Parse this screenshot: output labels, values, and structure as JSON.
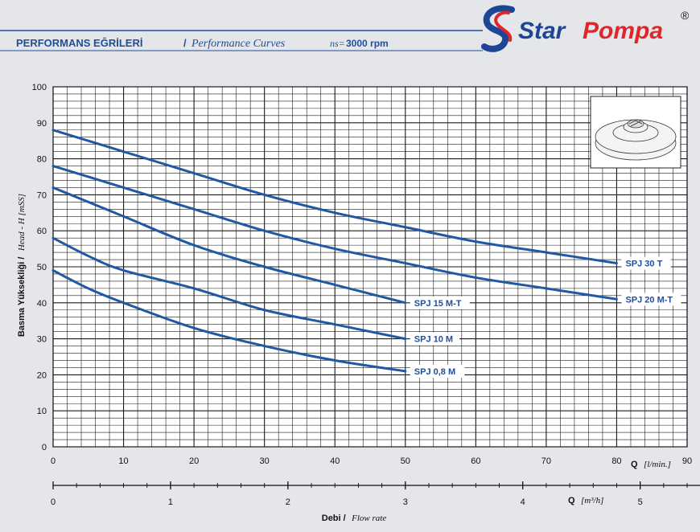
{
  "header": {
    "title": "PERFORMANS EĞRİLERİ",
    "separator": "/",
    "subtitle": "Performance Curves",
    "ns_label": "ns=",
    "speed": "3000 rpm"
  },
  "brand": {
    "name_a": "Star",
    "name_b": "Pompa",
    "mark": "®",
    "colors": {
      "red": "#e0262b",
      "blue": "#1d4596"
    }
  },
  "colors": {
    "curve": "#1f59a3",
    "grid": "#1a1a1a",
    "background": "#e4e6e9",
    "label_box": "#ffffff",
    "header_rule": "#1f4e9a"
  },
  "inset_image": {
    "icon": "impeller-icon"
  },
  "chart_data": {
    "type": "line",
    "title": "PERFORMANS EĞRİLERİ / Performance Curves",
    "ylabel_b": "Basma Yüksekliği /",
    "ylabel_i": "Head - H [mSS]",
    "ylim": [
      0,
      100
    ],
    "yticks": [
      0,
      10,
      20,
      30,
      40,
      50,
      60,
      70,
      80,
      90,
      100
    ],
    "xlim": [
      0,
      90
    ],
    "xticks": [
      0,
      10,
      20,
      30,
      40,
      50,
      60,
      70,
      80,
      90
    ],
    "xlabel_b": "Q",
    "xlabel_i": "[l/min.]",
    "grid": true,
    "grid_minor_x_step": 2,
    "grid_minor_y_step": 2,
    "secondary_x": {
      "ticks": [
        0,
        1,
        2,
        3,
        4,
        5
      ],
      "factor": 16.667,
      "label_b": "Q",
      "label_i": "[m³/h]"
    },
    "footer_b": "Debi /",
    "footer_i": "Flow rate",
    "series": [
      {
        "name": "SPJ 30 T",
        "x": [
          0,
          10,
          20,
          30,
          40,
          50,
          60,
          70,
          80
        ],
        "y": [
          88,
          82,
          76,
          70,
          65,
          61,
          57,
          54,
          51
        ]
      },
      {
        "name": "SPJ 20 M-T",
        "x": [
          0,
          10,
          20,
          30,
          40,
          50,
          60,
          70,
          80
        ],
        "y": [
          78,
          72,
          66,
          60,
          55,
          51,
          47,
          44,
          41
        ]
      },
      {
        "name": "SPJ 15 M-T",
        "x": [
          0,
          10,
          20,
          30,
          40,
          50
        ],
        "y": [
          72,
          64,
          56,
          50,
          45,
          40
        ]
      },
      {
        "name": "SPJ 10 M",
        "x": [
          0,
          5,
          10,
          20,
          30,
          40,
          50
        ],
        "y": [
          58,
          53,
          49,
          44,
          38,
          34,
          30
        ]
      },
      {
        "name": "SPJ 0,8 M",
        "x": [
          0,
          5,
          10,
          20,
          30,
          40,
          50
        ],
        "y": [
          49,
          44,
          40,
          33,
          28,
          24,
          21
        ]
      }
    ]
  }
}
